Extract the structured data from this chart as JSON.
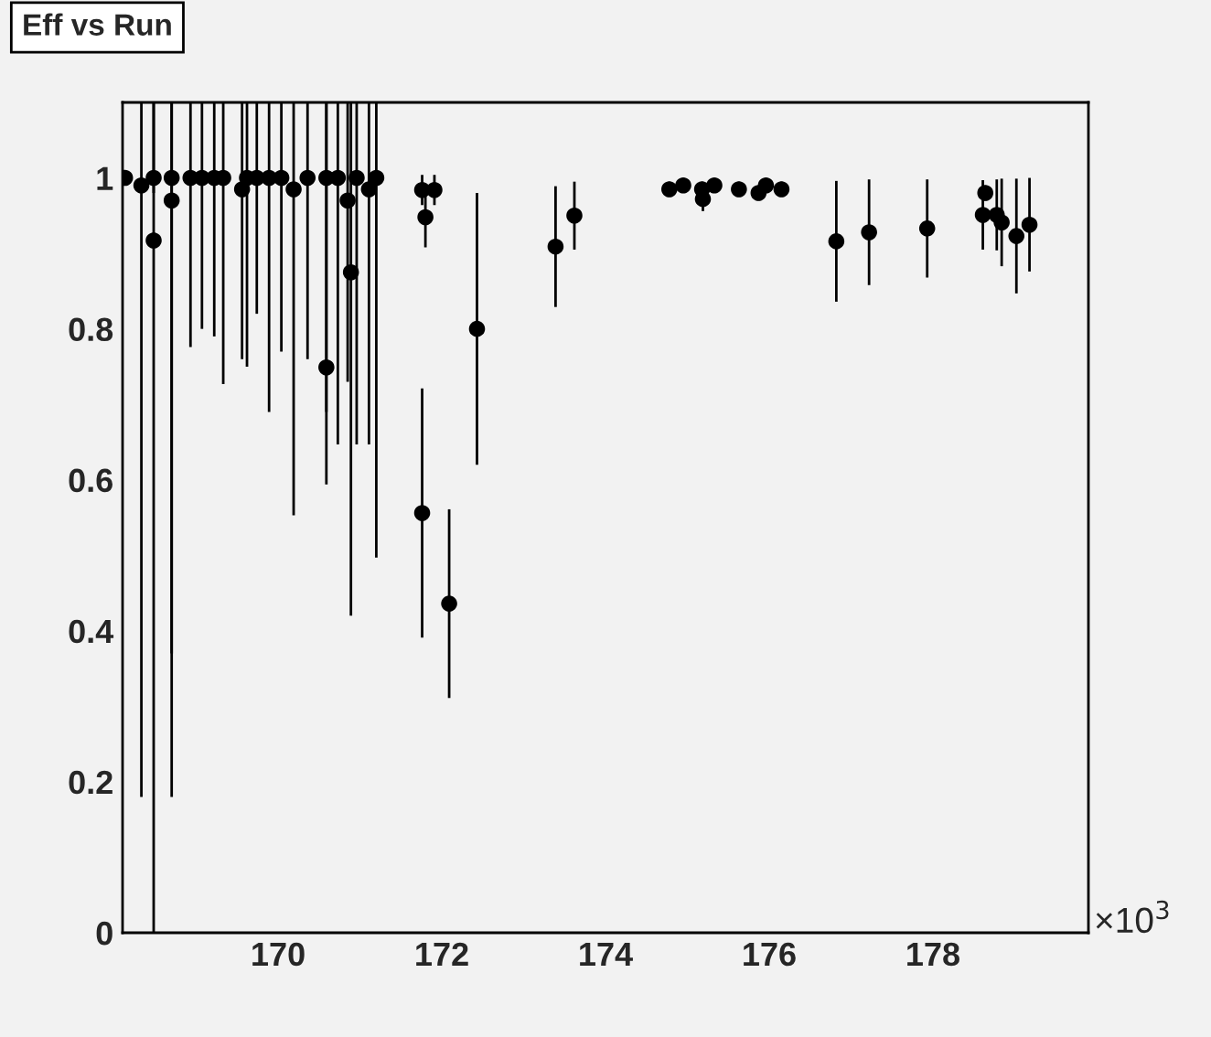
{
  "chart_data": {
    "type": "scatter",
    "title": "Eff vs Run",
    "x": [
      168.13,
      168.33,
      168.48,
      168.48,
      168.7,
      168.7,
      168.93,
      169.07,
      169.22,
      169.33,
      169.56,
      169.62,
      169.74,
      169.89,
      170.04,
      170.19,
      170.36,
      170.59,
      170.59,
      170.73,
      170.85,
      170.89,
      170.96,
      171.11,
      171.2,
      171.76,
      171.91,
      171.8,
      171.76,
      172.09,
      172.43,
      173.39,
      173.62,
      174.78,
      174.95,
      175.18,
      175.19,
      175.33,
      175.63,
      175.87,
      175.96,
      176.15,
      176.82,
      177.22,
      177.93,
      178.61,
      178.64,
      178.78,
      178.84,
      179.02,
      179.18
    ],
    "values": [
      1.0,
      0.99,
      1.0,
      0.917,
      1.0,
      0.97,
      1.0,
      1.0,
      1.0,
      1.0,
      0.985,
      1.0,
      1.0,
      1.0,
      1.0,
      0.985,
      1.0,
      1.0,
      0.749,
      1.0,
      0.97,
      0.875,
      1.0,
      0.985,
      1.0,
      0.984,
      0.984,
      0.948,
      0.556,
      0.436,
      0.8,
      0.909,
      0.95,
      0.985,
      0.99,
      0.985,
      0.972,
      0.99,
      0.985,
      0.98,
      0.99,
      0.985,
      0.916,
      0.928,
      0.933,
      0.951,
      0.98,
      0.951,
      0.941,
      0.923,
      0.938
    ],
    "errors": [
      0.01,
      [
        0.18,
        1.1
      ],
      [
        0.98,
        1.1
      ],
      [
        0.0,
        1.1
      ],
      [
        0.37,
        1.1
      ],
      [
        0.18,
        1.1
      ],
      [
        0.776,
        1.1
      ],
      [
        0.8,
        1.1
      ],
      [
        0.79,
        1.1
      ],
      [
        0.727,
        1.1
      ],
      [
        0.76,
        1.1
      ],
      [
        0.75,
        1.1
      ],
      [
        0.82,
        1.1
      ],
      [
        0.69,
        1.1
      ],
      [
        0.77,
        1.1
      ],
      [
        0.553,
        1.1
      ],
      [
        0.76,
        1.1
      ],
      [
        0.69,
        1.1
      ],
      [
        0.594,
        1.1
      ],
      [
        0.647,
        1.1
      ],
      [
        0.73,
        1.1
      ],
      [
        0.42,
        1.1
      ],
      [
        0.647,
        1.1
      ],
      [
        0.647,
        1.1
      ],
      [
        0.497,
        1.1
      ],
      0.02,
      0.02,
      0.04,
      0.165,
      0.125,
      0.18,
      0.08,
      0.045,
      0.01,
      0.01,
      0.01,
      0.016,
      0.01,
      0.01,
      0.01,
      0.01,
      0.01,
      0.08,
      0.07,
      0.065,
      0.046,
      0.01,
      0.047,
      0.058,
      0.076,
      0.062
    ],
    "color": "#000000",
    "marker": "circle",
    "xlim": [
      168.1,
      179.9
    ],
    "ylim": [
      0,
      1.1
    ],
    "xticks": [
      170,
      172,
      174,
      176,
      178
    ],
    "yticks": [
      0,
      0.2,
      0.4,
      0.6,
      0.8,
      1
    ],
    "annotations": [
      "×10$^{3}$"
    ],
    "grid": false
  }
}
